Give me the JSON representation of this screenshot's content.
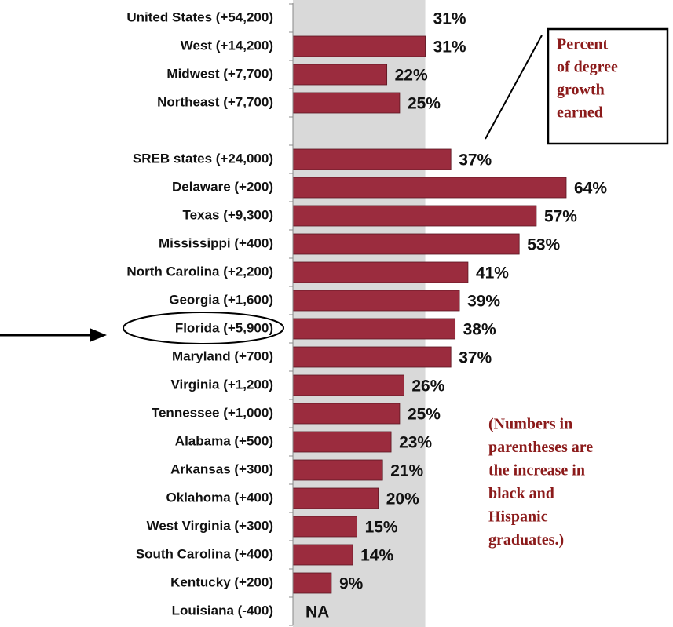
{
  "chart_data": {
    "type": "bar",
    "orientation": "horizontal",
    "categories": [
      "United States (+54,200)",
      "West (+14,200)",
      "Midwest (+7,700)",
      "Northeast (+7,700)",
      null,
      "SREB states (+24,000)",
      "Delaware (+200)",
      "Texas (+9,300)",
      "Mississippi (+400)",
      "North Carolina (+2,200)",
      "Georgia (+1,600)",
      "Florida (+5,900)",
      "Maryland (+700)",
      "Virginia (+1,200)",
      "Tennessee (+1,000)",
      "Alabama (+500)",
      "Arkansas (+300)",
      "Oklahoma (+400)",
      "West Virginia (+300)",
      "South Carolina (+400)",
      "Kentucky (+200)",
      "Louisiana (-400)"
    ],
    "values": [
      31,
      31,
      22,
      25,
      null,
      37,
      64,
      57,
      53,
      41,
      39,
      38,
      37,
      26,
      25,
      23,
      21,
      20,
      15,
      14,
      9,
      null
    ],
    "value_labels": [
      "31%",
      "31%",
      "22%",
      "25%",
      null,
      "37%",
      "64%",
      "57%",
      "53%",
      "41%",
      "39%",
      "38%",
      "37%",
      "26%",
      "25%",
      "23%",
      "21%",
      "20%",
      "15%",
      "14%",
      "9%",
      "NA"
    ],
    "color": "#9b2c3e",
    "reference_color": "#d9d9d9",
    "annotations": [
      {
        "text": [
          "Percent",
          "of degree",
          "growth",
          "earned"
        ]
      },
      {
        "text": [
          "(Numbers in",
          "parentheses are",
          "the increase in",
          "black and",
          "Hispanic",
          "graduates.)"
        ]
      }
    ]
  }
}
